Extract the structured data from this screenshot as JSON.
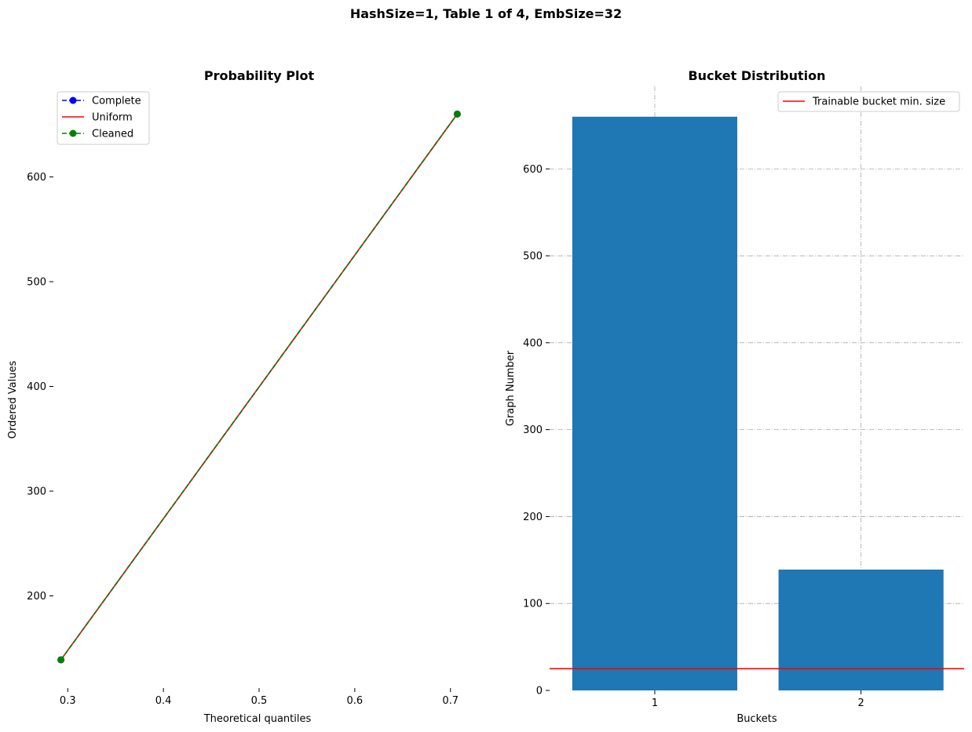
{
  "figure": {
    "suptitle": "HashSize=1, Table 1 of 4, EmbSize=32"
  },
  "chart_data": [
    {
      "type": "line",
      "title": "Probability Plot",
      "xlabel": "Theoretical quantiles",
      "ylabel": "Ordered Values",
      "xlim": [
        0.285,
        0.715
      ],
      "ylim": [
        112,
        685
      ],
      "xticks": [
        0.3,
        0.4,
        0.5,
        0.6,
        0.7
      ],
      "xtick_labels": [
        "0.3",
        "0.4",
        "0.5",
        "0.6",
        "0.7"
      ],
      "yticks": [
        200,
        300,
        400,
        500,
        600
      ],
      "ytick_labels": [
        "200",
        "300",
        "400",
        "500",
        "600"
      ],
      "grid": false,
      "legend": "upper-left",
      "series": [
        {
          "name": "Complete",
          "style": "dashed-marker",
          "color": "#0000ff",
          "x": [
            0.2929,
            0.7071
          ],
          "y": [
            139,
            660
          ]
        },
        {
          "name": "Uniform",
          "style": "solid",
          "color": "#ff0000",
          "x": [
            0.2929,
            0.7071
          ],
          "y": [
            139,
            660
          ]
        },
        {
          "name": "Cleaned",
          "style": "dashed-marker",
          "color": "#008000",
          "x": [
            0.2929,
            0.7071
          ],
          "y": [
            139,
            660
          ]
        }
      ]
    },
    {
      "type": "bar",
      "title": "Bucket Distribution",
      "xlabel": "Buckets",
      "ylabel": "Graph Number",
      "categories": [
        "1",
        "2"
      ],
      "values": [
        660,
        139
      ],
      "bar_color": "#1f77b4",
      "xlim": [
        0.49,
        2.5
      ],
      "ylim": [
        0,
        695
      ],
      "yticks": [
        0,
        100,
        200,
        300,
        400,
        500,
        600
      ],
      "ytick_labels": [
        "0",
        "100",
        "200",
        "300",
        "400",
        "500",
        "600"
      ],
      "grid": true,
      "legend": "upper-right",
      "hline": {
        "name": "Trainable bucket min. size",
        "y": 25,
        "color": "#ff0000"
      }
    }
  ]
}
